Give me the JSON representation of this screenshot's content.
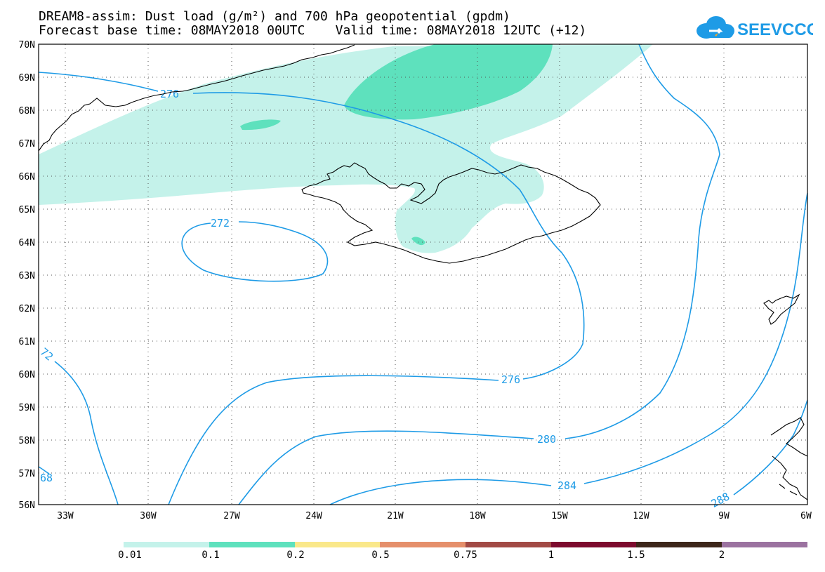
{
  "title_line1": "DREAM8-assim: Dust load (g/m²) and 700 hPa geopotential (gpdm)",
  "title_line2": "Forecast base time: 08MAY2018 00UTC    Valid time: 08MAY2018 12UTC (+12)",
  "logo_text": "SEEVCCC",
  "map": {
    "lat_labels": [
      "70N",
      "69N",
      "68N",
      "67N",
      "66N",
      "65N",
      "64N",
      "63N",
      "62N",
      "61N",
      "60N",
      "59N",
      "58N",
      "57N",
      "56N"
    ],
    "lon_labels": [
      "33W",
      "30W",
      "27W",
      "24W",
      "21W",
      "18W",
      "15W",
      "12W",
      "9W",
      "6W"
    ],
    "lat_range": [
      56,
      70
    ],
    "lon_range": [
      -34.2,
      -6
    ],
    "grid": "dotted",
    "contour_labels": [
      "276",
      "272",
      "276",
      "280",
      "284",
      "288",
      "72",
      "68"
    ],
    "contour_color": "#1e9be6",
    "coastline_color": "#000000"
  },
  "legend": {
    "bins": [
      {
        "color": "#c4f2ea"
      },
      {
        "color": "#5ee1bd"
      },
      {
        "color": "#fae88a"
      },
      {
        "color": "#e58f6b"
      },
      {
        "color": "#a24a45"
      },
      {
        "color": "#7d0b2e"
      },
      {
        "color": "#3d261a"
      },
      {
        "color": "#9b72a0"
      }
    ],
    "labels": [
      "0.01",
      "0.1",
      "0.2",
      "0.5",
      "0.75",
      "1",
      "1.5",
      "2"
    ]
  }
}
